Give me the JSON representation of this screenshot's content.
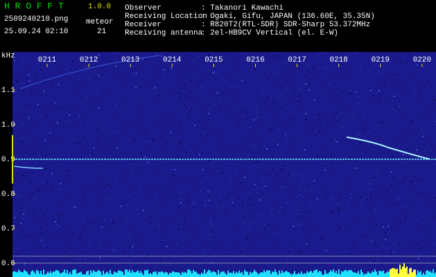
{
  "header": {
    "app": "H R O F F T",
    "version": "1.0.0",
    "file": "2509240210.png",
    "datetime": "25.09.24 02:10",
    "count_label": "meteor",
    "count": 21,
    "fields": [
      {
        "label": "Observer",
        "value": ": Takanori Kawachi"
      },
      {
        "label": "Receiving Location",
        "value": ": Ogaki, Gifu, JAPAN (136.60E, 35.35N)"
      },
      {
        "label": "Receiver",
        "value": ": R820T2(RTL-SDR) SDR-Sharp 53.372MHz"
      },
      {
        "label": "Receiving antenna",
        "value": ": 2el-HB9CV Vertical (el. E-W)"
      }
    ]
  },
  "chart_data": {
    "type": "spectrogram",
    "y_label": "kHz",
    "categories": [
      "0211",
      "0212",
      "0213",
      "0214",
      "0215",
      "0216",
      "0217",
      "0218",
      "0219",
      "0220"
    ],
    "ylim": [
      0.56,
      1.21
    ],
    "yticks": [
      {
        "value": 0.6,
        "label": "0.6"
      },
      {
        "value": 0.7,
        "label": "0.7"
      },
      {
        "value": 0.8,
        "label": "0.8"
      },
      {
        "value": 0.9,
        "label": "0.9"
      },
      {
        "value": 1.0,
        "label": "1.0"
      },
      {
        "value": 1.1,
        "label": "1.1"
      }
    ],
    "color": "#1a1a8c"
  }
}
